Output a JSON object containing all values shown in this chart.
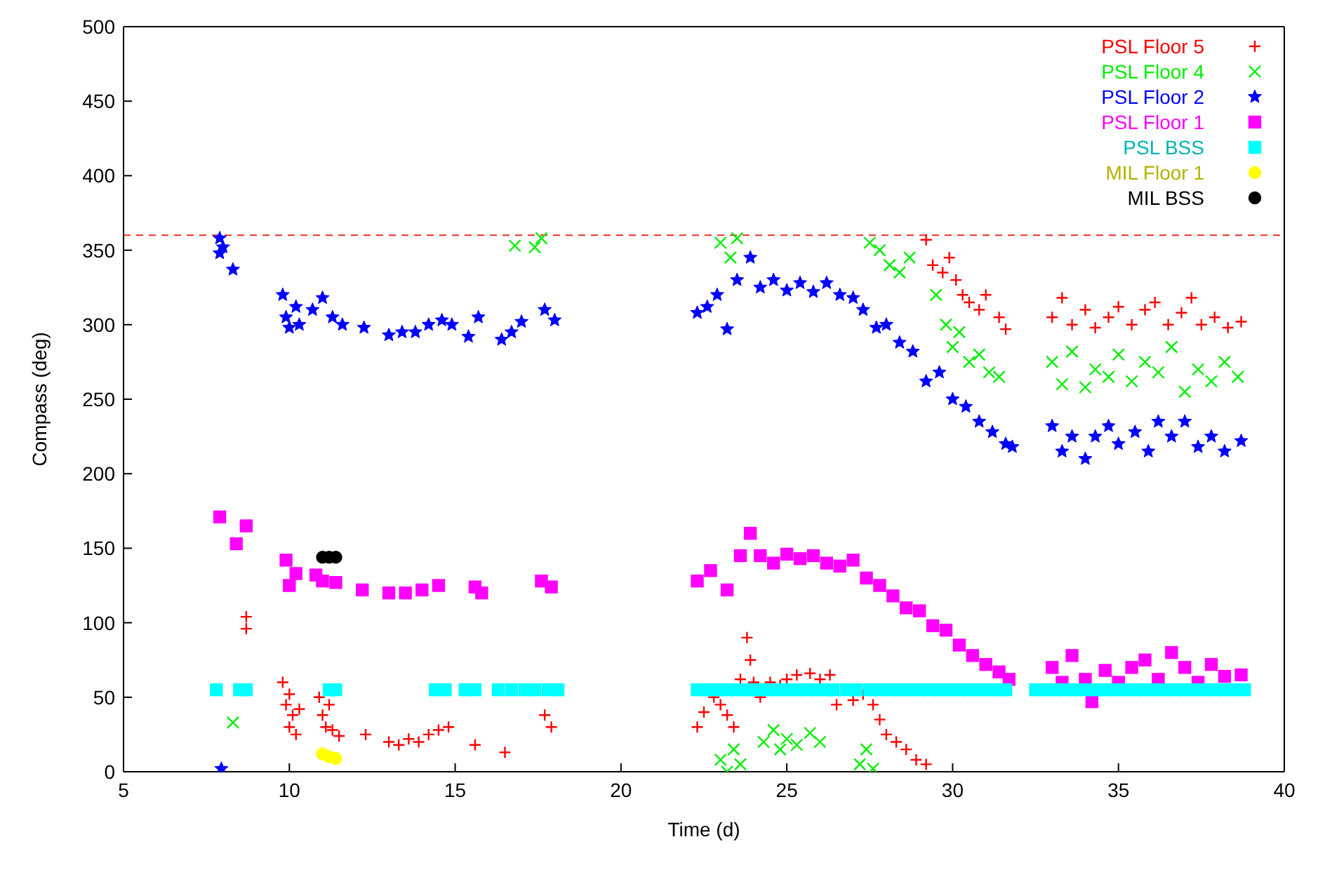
{
  "chart_data": {
    "type": "scatter",
    "xlabel": "Time (d)",
    "ylabel": "Compass (deg)",
    "xlim": [
      5,
      40
    ],
    "xticks": [
      5,
      10,
      15,
      20,
      25,
      30,
      35,
      40
    ],
    "ylim": [
      0,
      500
    ],
    "yticks": [
      0,
      50,
      100,
      150,
      200,
      250,
      300,
      350,
      400,
      450,
      500
    ],
    "grid": false,
    "legend": "top right",
    "ref_lines": [
      {
        "axis": "y",
        "value": 360,
        "color": "#e83020",
        "line_style": "dashed"
      }
    ],
    "series": [
      {
        "name": "PSL Floor 5",
        "color": "#ff0000",
        "marker": "plus",
        "x": [
          8.7,
          8.7,
          9.8,
          9.9,
          10.0,
          10.0,
          10.1,
          10.2,
          10.3,
          10.9,
          11.0,
          11.1,
          11.2,
          11.3,
          11.5,
          12.3,
          13.0,
          13.3,
          13.6,
          13.9,
          14.2,
          14.5,
          14.8,
          15.6,
          16.5,
          17.7,
          17.9,
          22.3,
          22.5,
          22.8,
          23.0,
          23.2,
          23.4,
          23.6,
          23.8,
          23.9,
          24.0,
          24.2,
          24.5,
          24.8,
          25.0,
          25.3,
          25.7,
          26.0,
          26.3,
          26.5,
          27.0,
          27.3,
          27.6,
          27.8,
          28.0,
          28.3,
          28.6,
          28.9,
          29.2,
          29.2,
          29.4,
          29.7,
          29.9,
          30.1,
          30.3,
          30.5,
          30.8,
          31.0,
          31.4,
          31.6,
          33.0,
          33.3,
          33.6,
          34.0,
          34.3,
          34.7,
          35.0,
          35.4,
          35.8,
          36.1,
          36.5,
          36.9,
          37.2,
          37.5,
          37.9,
          38.3,
          38.7
        ],
        "values": [
          96,
          104,
          60,
          45,
          52,
          30,
          38,
          25,
          42,
          50,
          38,
          30,
          45,
          28,
          24,
          25,
          20,
          18,
          22,
          20,
          25,
          28,
          30,
          18,
          13,
          38,
          30,
          30,
          40,
          50,
          45,
          38,
          30,
          62,
          90,
          75,
          60,
          50,
          60,
          58,
          62,
          65,
          66,
          62,
          65,
          45,
          48,
          52,
          45,
          35,
          25,
          20,
          15,
          8,
          5,
          357,
          340,
          335,
          345,
          330,
          320,
          315,
          310,
          320,
          305,
          297,
          305,
          318,
          300,
          310,
          298,
          305,
          312,
          300,
          310,
          315,
          300,
          308,
          318,
          300,
          305,
          298,
          302
        ]
      },
      {
        "name": "PSL Floor 4",
        "color": "#00ee00",
        "marker": "cross",
        "x": [
          8.3,
          16.8,
          17.4,
          17.6,
          23.0,
          23.3,
          23.5,
          23.0,
          23.2,
          23.4,
          23.6,
          24.3,
          24.6,
          24.8,
          25.0,
          25.3,
          25.7,
          26.0,
          27.2,
          27.4,
          27.6,
          27.5,
          27.8,
          28.1,
          28.4,
          28.7,
          29.5,
          29.8,
          30.0,
          30.2,
          30.5,
          30.8,
          31.1,
          31.4,
          33.0,
          33.3,
          33.6,
          34.0,
          34.3,
          34.7,
          35.0,
          35.4,
          35.8,
          36.2,
          36.6,
          37.0,
          37.4,
          37.8,
          38.2,
          38.6
        ],
        "values": [
          33,
          353,
          352,
          358,
          355,
          345,
          358,
          8,
          0,
          15,
          5,
          20,
          28,
          15,
          22,
          18,
          26,
          20,
          5,
          15,
          2,
          355,
          350,
          340,
          335,
          345,
          320,
          300,
          285,
          295,
          275,
          280,
          268,
          265,
          275,
          260,
          282,
          258,
          270,
          265,
          280,
          262,
          275,
          268,
          285,
          255,
          270,
          262,
          275,
          265
        ]
      },
      {
        "name": "PSL Floor 2",
        "color": "#0000ff",
        "marker": "star",
        "x": [
          7.9,
          7.9,
          8.0,
          8.3,
          7.95,
          9.8,
          9.9,
          10.0,
          10.2,
          10.3,
          10.7,
          11.0,
          11.3,
          11.6,
          12.25,
          13.0,
          13.4,
          13.8,
          14.2,
          14.6,
          14.9,
          15.4,
          15.7,
          16.4,
          16.7,
          17.0,
          17.7,
          18.0,
          22.3,
          22.6,
          22.9,
          23.2,
          23.5,
          23.9,
          24.2,
          24.6,
          25.0,
          25.4,
          25.8,
          26.2,
          26.6,
          27.0,
          27.3,
          27.7,
          28.0,
          28.4,
          28.8,
          29.2,
          29.6,
          30.0,
          30.4,
          30.8,
          31.2,
          31.6,
          31.8,
          33.0,
          33.3,
          33.6,
          34.0,
          34.3,
          34.7,
          35.0,
          35.5,
          35.9,
          36.2,
          36.6,
          37.0,
          37.4,
          37.8,
          38.2,
          38.7
        ],
        "values": [
          348,
          358,
          352,
          337,
          2,
          320,
          305,
          298,
          312,
          300,
          310,
          318,
          305,
          300,
          298,
          293,
          295,
          295,
          300,
          303,
          300,
          292,
          305,
          290,
          295,
          302,
          310,
          303,
          308,
          312,
          320,
          297,
          330,
          345,
          325,
          330,
          323,
          328,
          322,
          328,
          320,
          318,
          310,
          298,
          300,
          288,
          282,
          262,
          268,
          250,
          245,
          235,
          228,
          220,
          218,
          232,
          215,
          225,
          210,
          225,
          232,
          220,
          228,
          215,
          235,
          225,
          235,
          218,
          225,
          215,
          222
        ]
      },
      {
        "name": "PSL Floor 1",
        "color": "#ff00ff",
        "marker": "square",
        "x": [
          7.9,
          8.4,
          8.7,
          9.9,
          10.0,
          10.2,
          10.8,
          11.0,
          11.4,
          12.2,
          13.0,
          13.5,
          14.0,
          14.5,
          15.6,
          15.8,
          17.6,
          17.9,
          22.3,
          22.7,
          23.2,
          23.6,
          23.9,
          24.2,
          24.6,
          25.0,
          25.4,
          25.8,
          26.2,
          26.6,
          27.0,
          27.4,
          27.8,
          28.2,
          28.6,
          29.0,
          29.4,
          29.8,
          30.2,
          30.6,
          31.0,
          31.4,
          31.7,
          33.0,
          33.3,
          33.6,
          34.0,
          34.2,
          34.6,
          35.0,
          35.4,
          35.8,
          36.2,
          36.6,
          37.0,
          37.4,
          37.8,
          38.2,
          38.7
        ],
        "values": [
          171,
          153,
          165,
          142,
          125,
          133,
          132,
          128,
          127,
          122,
          120,
          120,
          122,
          125,
          124,
          120,
          128,
          124,
          128,
          135,
          122,
          145,
          160,
          145,
          140,
          146,
          143,
          145,
          140,
          138,
          142,
          130,
          125,
          118,
          110,
          108,
          98,
          95,
          85,
          78,
          72,
          67,
          62,
          70,
          60,
          78,
          62,
          47,
          68,
          60,
          70,
          75,
          62,
          80,
          70,
          60,
          72,
          64,
          65
        ]
      },
      {
        "name": "PSL BSS",
        "color": "#00ffff",
        "marker": "square",
        "x": [
          7.8,
          8.5,
          8.7,
          11.2,
          11.4,
          14.4,
          14.7,
          15.3,
          15.6,
          16.3,
          16.7,
          17.1,
          17.4,
          17.8,
          18.1,
          22.3,
          22.6,
          22.9,
          23.2,
          23.5,
          23.8,
          24.1,
          24.4,
          24.7,
          25.0,
          25.3,
          25.6,
          25.9,
          26.2,
          26.4,
          26.8,
          27.1,
          27.5,
          27.8,
          28.1,
          28.4,
          28.7,
          29.0,
          29.3,
          29.6,
          29.9,
          30.2,
          30.5,
          30.8,
          31.1,
          31.4,
          31.6,
          32.5,
          32.8,
          33.1,
          33.4,
          33.7,
          34.0,
          34.3,
          34.6,
          34.9,
          35.2,
          35.5,
          35.8,
          36.1,
          36.4,
          36.7,
          37.0,
          37.3,
          37.6,
          37.9,
          38.2,
          38.5,
          38.8
        ],
        "values": [
          55,
          55,
          55,
          55,
          55,
          55,
          55,
          55,
          55,
          55,
          55,
          55,
          55,
          55,
          55,
          55,
          55,
          55,
          55,
          55,
          55,
          55,
          55,
          55,
          55,
          55,
          55,
          55,
          55,
          55,
          55,
          55,
          55,
          55,
          55,
          55,
          55,
          55,
          55,
          55,
          55,
          55,
          55,
          55,
          55,
          55,
          55,
          55,
          55,
          55,
          55,
          55,
          55,
          55,
          55,
          55,
          55,
          55,
          55,
          55,
          55,
          55,
          55,
          55,
          55,
          55,
          55,
          55,
          55
        ]
      },
      {
        "name": "MIL Floor 1",
        "color": "#ffff00",
        "marker": "circle",
        "x": [
          11.0,
          11.2,
          11.4
        ],
        "values": [
          12,
          10,
          9
        ]
      },
      {
        "name": "MIL BSS",
        "color": "#000000",
        "marker": "circle",
        "x": [
          11.0,
          11.2,
          11.4
        ],
        "values": [
          144,
          144,
          144
        ]
      }
    ]
  }
}
